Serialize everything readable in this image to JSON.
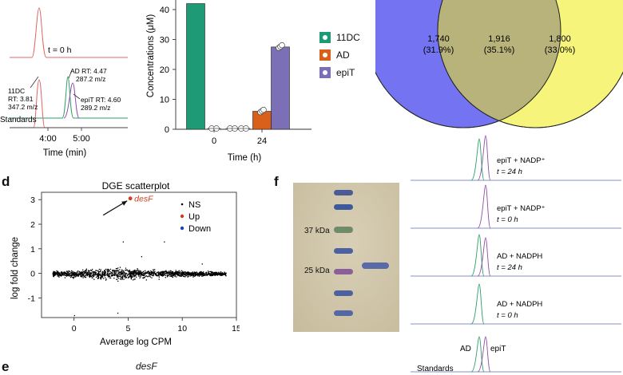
{
  "panel_a": {
    "t0_label": "t = 0 h",
    "ad_label_line1": "AD RT: 4.47",
    "ad_label_line2": "287.2 m/z",
    "dc11_label_line1": "11DC",
    "dc11_label_line2": "RT: 3.81",
    "dc11_label_line3": "347.2 m/z",
    "epit_label_line1": "epiT RT: 4.60",
    "epit_label_line2": "289.2 m/z",
    "standards": "Standards",
    "xticks": [
      "4:00",
      "5:00"
    ],
    "xlabel": "Time (min)",
    "colors": {
      "dc11": "#e06666",
      "ad": "#2e9e6b",
      "epit": "#8e4fa8"
    }
  },
  "chart_data": [
    {
      "type": "bar",
      "ylabel": "Concentrations (μM)",
      "xlabel": "Time (h)",
      "categories": [
        "0",
        "24"
      ],
      "yticks": [
        "0",
        "10",
        "20",
        "30",
        "40"
      ],
      "ylim": [
        0,
        40
      ],
      "series": [
        {
          "name": "11DC",
          "color": "#1f9a76",
          "values": [
            42,
            0
          ]
        },
        {
          "name": "AD",
          "color": "#d9601a",
          "values": [
            0,
            6
          ]
        },
        {
          "name": "epiT",
          "color": "#7b6fb5",
          "values": [
            0,
            27.5
          ]
        }
      ],
      "replicates": {
        "AD_24": [
          5.7,
          6.1,
          6.5
        ],
        "epiT_24": [
          27.2,
          27.6,
          28.1
        ]
      }
    },
    {
      "type": "scatter",
      "title": "DGE scatterplot",
      "xlabel": "Average log CPM",
      "ylabel": "log fold change",
      "xticks": [
        "0",
        "5",
        "10",
        "15"
      ],
      "yticks": [
        "-1",
        "0",
        "1",
        "2",
        "3"
      ],
      "xlim": [
        -3,
        15
      ],
      "ylim": [
        -1.8,
        3.3
      ],
      "legend": [
        "NS",
        "Up",
        "Down"
      ],
      "legend_colors": [
        "#000000",
        "#d23b1e",
        "#1f3fbf"
      ],
      "highlight": {
        "label": "desF",
        "x": 5.2,
        "y": 3.05,
        "class": "Up"
      }
    }
  ],
  "venn": {
    "left": {
      "count": "1,740",
      "pct": "(31.9%)",
      "color": "#7474f2"
    },
    "middle": {
      "count": "1,916",
      "pct": "(35.1%)",
      "color": "#b7b37a"
    },
    "right": {
      "count": "1,800",
      "pct": "(33.0%)",
      "color": "#f6f47a"
    }
  },
  "panel_d": {
    "letter": "d"
  },
  "panel_e": {
    "letter": "e",
    "gene": "desF"
  },
  "panel_f": {
    "letter": "f",
    "marker_37": "37 kDa",
    "marker_25": "25 kDa",
    "traces": [
      {
        "line1": "epiT + NADP⁺",
        "line2": "t = 24 h"
      },
      {
        "line1": "epiT + NADP⁺",
        "line2": "t = 0 h"
      },
      {
        "line1": "AD + NADPH",
        "line2": "t = 24 h"
      },
      {
        "line1": "AD + NADPH",
        "line2": "t = 0 h"
      }
    ],
    "std_ad": "AD",
    "std_epit": "epiT",
    "standards": "Standards"
  }
}
